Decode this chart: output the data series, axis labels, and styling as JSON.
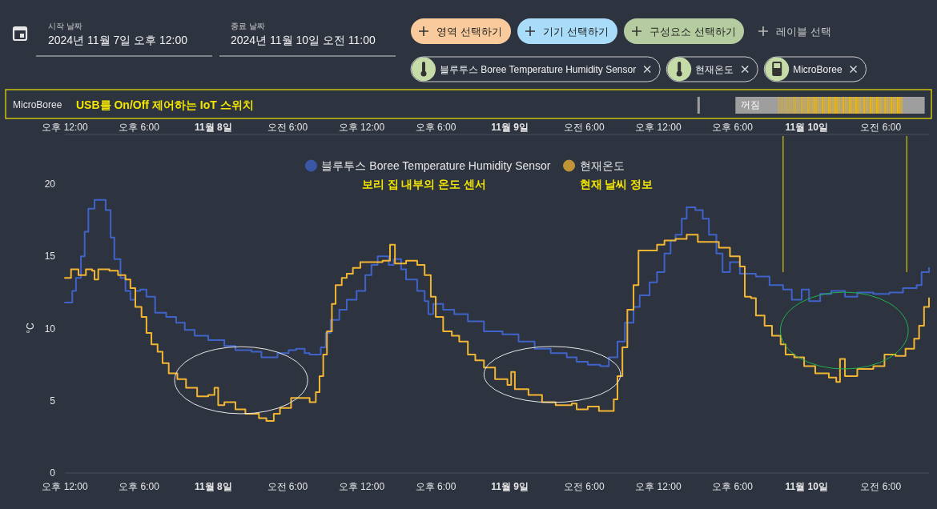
{
  "chart_data": [
    {
      "type": "other",
      "annotations": [
        "시작 날짜",
        "2024년 11월 7일 오후 12:00",
        "종료 날짜",
        "2024년 11월 10일 오전 11:00",
        "영역 선택하기",
        "기기 선택하기",
        "구성요소 선택하기",
        "레이블 선택",
        "블루투스 Boree Temperature Humidity Sensor",
        "현재온도",
        "MicroBoree"
      ]
    },
    {
      "type": "other",
      "ylabel": "MicroBoree",
      "annotations": [
        "USB를 On/Off 제어하는 IoT 스위치",
        "꺼짐"
      ]
    },
    {
      "type": "step",
      "ylabel": "°C",
      "xlim": [
        "2024-11-07T12:00",
        "2024-11-10T09:54"
      ],
      "x2lim": [
        "2024-11-07T12:00",
        "2024-11-10T09:54"
      ],
      "ylim": [
        0,
        20
      ],
      "yticks": [
        0,
        5,
        10,
        15,
        20
      ],
      "legend": "top",
      "marker": "none",
      "line_style": "solid",
      "grid": false,
      "annotations": [
        "보리 집 내부의 온도 센서",
        "현재 날씨 정보"
      ],
      "ref_lines": [
        {
          "axis": "x",
          "value": "2024-11-09T22:06",
          "color": "#f2e600"
        },
        {
          "axis": "x",
          "value": "2024-11-10T08:06",
          "color": "#f2e600"
        }
      ],
      "x2ticks": [
        {
          "value": "2024-11-07T12:00",
          "label": "오후 12:00"
        },
        {
          "value": "2024-11-07T18:00",
          "label": "오후 6:00"
        },
        {
          "value": "2024-11-08T00:00",
          "label": "11월 8일"
        },
        {
          "value": "2024-11-08T06:00",
          "label": "오전 6:00"
        },
        {
          "value": "2024-11-08T12:00",
          "label": "오후 12:00"
        },
        {
          "value": "2024-11-08T18:00",
          "label": "오후 6:00"
        },
        {
          "value": "2024-11-09T00:00",
          "label": "11월 9일"
        },
        {
          "value": "2024-11-09T06:00",
          "label": "오전 6:00"
        },
        {
          "value": "2024-11-09T12:00",
          "label": "오후 12:00"
        },
        {
          "value": "2024-11-09T18:00",
          "label": "오후 6:00"
        },
        {
          "value": "2024-11-10T00:00",
          "label": "11월 10일"
        },
        {
          "value": "2024-11-10T06:00",
          "label": "오전 6:00"
        }
      ],
      "xticks": [
        {
          "value": "2024-11-07T12:00",
          "label": "오후 12:00"
        },
        {
          "value": "2024-11-07T18:00",
          "label": "오후 6:00"
        },
        {
          "value": "2024-11-08T00:00",
          "label": "11월 8일"
        },
        {
          "value": "2024-11-08T06:00",
          "label": "오전 6:00"
        },
        {
          "value": "2024-11-08T12:00",
          "label": "오후 12:00"
        },
        {
          "value": "2024-11-08T18:00",
          "label": "오후 6:00"
        },
        {
          "value": "2024-11-09T00:00",
          "label": "11월 9일"
        },
        {
          "value": "2024-11-09T06:00",
          "label": "오전 6:00"
        },
        {
          "value": "2024-11-09T12:00",
          "label": "오후 12:00"
        },
        {
          "value": "2024-11-09T18:00",
          "label": "오후 6:00"
        },
        {
          "value": "2024-11-10T00:00",
          "label": "11월 10일"
        },
        {
          "value": "2024-11-10T06:00",
          "label": "오전 6:00"
        }
      ],
      "series": [
        {
          "name": "블루투스 Boree Temperature Humidity Sensor",
          "color": "#3f63c8",
          "x": [
            "2024-11-07T12:00",
            "2024-11-07T12:36",
            "2024-11-07T12:54",
            "2024-11-07T13:18",
            "2024-11-07T13:36",
            "2024-11-07T13:54",
            "2024-11-07T14:24",
            "2024-11-07T15:00",
            "2024-11-07T15:18",
            "2024-11-07T15:42",
            "2024-11-07T16:00",
            "2024-11-07T16:30",
            "2024-11-07T16:54",
            "2024-11-07T17:18",
            "2024-11-07T17:42",
            "2024-11-07T18:06",
            "2024-11-07T18:36",
            "2024-11-07T19:18",
            "2024-11-07T20:12",
            "2024-11-07T21:00",
            "2024-11-07T21:42",
            "2024-11-07T22:30",
            "2024-11-07T23:36",
            "2024-11-08T00:54",
            "2024-11-08T01:48",
            "2024-11-08T03:06",
            "2024-11-08T03:54",
            "2024-11-08T04:54",
            "2024-11-08T05:12",
            "2024-11-08T06:06",
            "2024-11-08T06:42",
            "2024-11-08T07:24",
            "2024-11-08T07:48",
            "2024-11-08T08:42",
            "2024-11-08T09:06",
            "2024-11-08T09:30",
            "2024-11-08T10:12",
            "2024-11-08T10:48",
            "2024-11-08T11:36",
            "2024-11-08T12:18",
            "2024-11-08T12:48",
            "2024-11-08T13:18",
            "2024-11-08T13:54",
            "2024-11-08T14:12",
            "2024-11-08T14:36",
            "2024-11-08T15:12",
            "2024-11-08T15:36",
            "2024-11-08T16:30",
            "2024-11-08T17:06",
            "2024-11-08T17:24",
            "2024-11-08T17:48",
            "2024-11-08T18:36",
            "2024-11-08T19:30",
            "2024-11-08T20:36",
            "2024-11-08T21:54",
            "2024-11-08T23:24",
            "2024-11-09T00:42",
            "2024-11-09T02:00",
            "2024-11-09T03:18",
            "2024-11-09T04:36",
            "2024-11-09T05:24",
            "2024-11-09T06:18",
            "2024-11-09T07:18",
            "2024-11-09T08:00",
            "2024-11-09T08:42",
            "2024-11-09T09:18",
            "2024-11-09T10:00",
            "2024-11-09T10:30",
            "2024-11-09T11:18",
            "2024-11-09T11:54",
            "2024-11-09T12:30",
            "2024-11-09T13:00",
            "2024-11-09T13:24",
            "2024-11-09T13:54",
            "2024-11-09T14:18",
            "2024-11-09T15:00",
            "2024-11-09T15:36",
            "2024-11-09T16:06",
            "2024-11-09T16:42",
            "2024-11-09T17:12",
            "2024-11-09T17:48",
            "2024-11-09T18:36",
            "2024-11-09T19:54",
            "2024-11-09T21:00",
            "2024-11-09T22:06",
            "2024-11-09T22:48",
            "2024-11-09T23:36",
            "2024-11-10T00:12",
            "2024-11-10T01:06",
            "2024-11-10T02:00",
            "2024-11-10T03:06",
            "2024-11-10T04:06",
            "2024-11-10T05:24",
            "2024-11-10T06:42",
            "2024-11-10T07:48",
            "2024-11-10T08:54",
            "2024-11-10T09:18",
            "2024-11-10T09:54"
          ],
          "values": [
            11.8,
            12.6,
            13.5,
            15.0,
            16.7,
            18.3,
            18.9,
            18.9,
            18.2,
            16.3,
            14.8,
            13.5,
            12.6,
            12.0,
            12.6,
            12.7,
            12.2,
            11.1,
            10.8,
            10.4,
            9.9,
            9.5,
            9.2,
            8.8,
            8.5,
            8.4,
            8.0,
            8.0,
            8.3,
            8.5,
            8.6,
            8.3,
            8.2,
            8.7,
            9.7,
            10.6,
            11.3,
            12.0,
            12.6,
            13.7,
            14.4,
            15.0,
            15.0,
            14.4,
            14.8,
            14.1,
            13.4,
            12.6,
            11.9,
            11.0,
            11.7,
            11.3,
            11.0,
            10.5,
            9.8,
            9.6,
            9.1,
            8.6,
            8.3,
            8.0,
            7.7,
            7.5,
            7.4,
            8.0,
            9.1,
            10.4,
            11.5,
            12.3,
            13.2,
            13.9,
            15.2,
            16.1,
            16.5,
            17.6,
            18.4,
            18.2,
            17.6,
            16.5,
            15.2,
            13.9,
            14.6,
            13.8,
            13.6,
            13.0,
            12.7,
            12.0,
            12.7,
            11.9,
            12.4,
            12.6,
            12.2,
            12.5,
            12.4,
            12.5,
            12.8,
            13.0,
            13.9,
            14.2
          ]
        },
        {
          "name": "현재온도",
          "color": "#f2b632",
          "x": [
            "2024-11-07T12:00",
            "2024-11-07T12:30",
            "2024-11-07T13:06",
            "2024-11-07T13:42",
            "2024-11-07T14:12",
            "2024-11-07T14:24",
            "2024-11-07T14:42",
            "2024-11-07T15:36",
            "2024-11-07T16:18",
            "2024-11-07T16:54",
            "2024-11-07T17:18",
            "2024-11-07T17:42",
            "2024-11-07T18:12",
            "2024-11-07T18:36",
            "2024-11-07T19:00",
            "2024-11-07T19:30",
            "2024-11-07T19:54",
            "2024-11-07T20:24",
            "2024-11-07T21:06",
            "2024-11-07T21:48",
            "2024-11-07T22:42",
            "2024-11-07T23:36",
            "2024-11-08T00:06",
            "2024-11-08T00:24",
            "2024-11-08T00:54",
            "2024-11-08T01:48",
            "2024-11-08T02:36",
            "2024-11-08T03:42",
            "2024-11-08T04:18",
            "2024-11-08T04:54",
            "2024-11-08T05:24",
            "2024-11-08T06:18",
            "2024-11-08T07:12",
            "2024-11-08T07:48",
            "2024-11-08T08:18",
            "2024-11-08T08:36",
            "2024-11-08T08:54",
            "2024-11-08T09:12",
            "2024-11-08T09:36",
            "2024-11-08T09:54",
            "2024-11-08T10:24",
            "2024-11-08T10:48",
            "2024-11-08T11:18",
            "2024-11-08T11:54",
            "2024-11-08T12:48",
            "2024-11-08T13:42",
            "2024-11-08T14:18",
            "2024-11-08T14:42",
            "2024-11-08T15:36",
            "2024-11-08T16:30",
            "2024-11-08T17:06",
            "2024-11-08T17:36",
            "2024-11-08T18:00",
            "2024-11-08T18:36",
            "2024-11-08T19:18",
            "2024-11-08T19:54",
            "2024-11-08T20:36",
            "2024-11-08T21:12",
            "2024-11-08T21:54",
            "2024-11-08T22:48",
            "2024-11-08T23:48",
            "2024-11-09T00:06",
            "2024-11-09T00:24",
            "2024-11-09T01:30",
            "2024-11-09T02:36",
            "2024-11-09T03:42",
            "2024-11-09T05:00",
            "2024-11-09T05:24",
            "2024-11-09T06:18",
            "2024-11-09T07:12",
            "2024-11-09T07:54",
            "2024-11-09T08:24",
            "2024-11-09T08:42",
            "2024-11-09T09:06",
            "2024-11-09T09:30",
            "2024-11-09T10:00",
            "2024-11-09T10:24",
            "2024-11-09T11:18",
            "2024-11-09T11:54",
            "2024-11-09T12:30",
            "2024-11-09T13:24",
            "2024-11-09T14:18",
            "2024-11-09T15:12",
            "2024-11-09T16:00",
            "2024-11-09T16:54",
            "2024-11-09T17:48",
            "2024-11-09T18:36",
            "2024-11-09T19:00",
            "2024-11-09T19:30",
            "2024-11-09T19:54",
            "2024-11-09T20:36",
            "2024-11-09T21:12",
            "2024-11-09T21:54",
            "2024-11-09T22:18",
            "2024-11-09T23:00",
            "2024-11-09T23:48",
            "2024-11-10T00:42",
            "2024-11-10T01:48",
            "2024-11-10T02:24",
            "2024-11-10T02:42",
            "2024-11-10T03:06",
            "2024-11-10T04:06",
            "2024-11-10T05:24",
            "2024-11-10T06:18",
            "2024-11-10T07:12",
            "2024-11-10T08:00",
            "2024-11-10T08:42",
            "2024-11-10T09:06",
            "2024-11-10T09:30",
            "2024-11-10T09:54"
          ],
          "values": [
            13.5,
            14.1,
            13.7,
            14.1,
            14.0,
            13.4,
            14.1,
            14.0,
            13.7,
            13.4,
            12.8,
            11.5,
            10.8,
            9.7,
            8.9,
            8.4,
            7.6,
            6.9,
            6.5,
            5.9,
            5.3,
            5.4,
            5.9,
            4.7,
            4.9,
            4.4,
            4.1,
            3.8,
            3.6,
            4.1,
            4.5,
            5.2,
            5.2,
            4.9,
            5.6,
            6.7,
            8.2,
            9.8,
            11.7,
            13.0,
            13.5,
            13.8,
            14.2,
            14.6,
            14.6,
            14.7,
            15.8,
            14.5,
            14.7,
            14.4,
            13.7,
            12.2,
            10.8,
            9.8,
            9.5,
            9.1,
            8.2,
            7.8,
            7.3,
            6.5,
            6.1,
            7.0,
            5.8,
            5.4,
            4.9,
            4.7,
            4.8,
            4.4,
            4.6,
            4.3,
            4.3,
            5.1,
            6.7,
            8.7,
            11.3,
            13.0,
            15.4,
            15.4,
            15.8,
            16.1,
            16.2,
            16.5,
            16.0,
            16.0,
            15.6,
            15.0,
            14.3,
            12.2,
            12.1,
            10.9,
            10.2,
            9.5,
            8.9,
            8.2,
            8.0,
            7.4,
            6.9,
            6.6,
            6.3,
            7.9,
            6.7,
            7.2,
            7.4,
            8.2,
            8.1,
            8.6,
            9.3,
            10.2,
            11.5,
            12.1
          ]
        }
      ]
    }
  ]
}
